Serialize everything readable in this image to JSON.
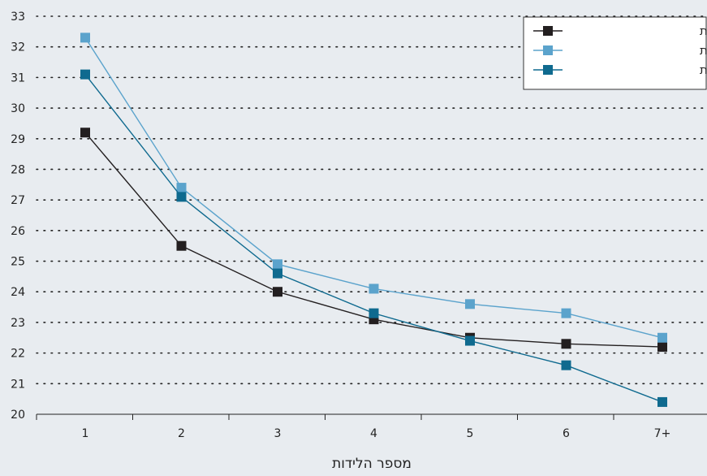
{
  "chart_data": {
    "type": "line",
    "categories": [
      "1",
      "2",
      "3",
      "4",
      "5",
      "6",
      "7+"
    ],
    "xlabel": "מספר הלידות",
    "ylim": [
      20,
      33
    ],
    "yticks": [
      "20",
      "21",
      "22",
      "23",
      "24",
      "25",
      "26",
      "27",
      "28",
      "29",
      "30",
      "31",
      "32",
      "33"
    ],
    "grid": "horizontal dotted",
    "legend_position": "top-right",
    "series": [
      {
        "name": "יהודיות לא חרדיות",
        "color": "#231f20",
        "values": [
          29.2,
          25.5,
          24.0,
          23.1,
          22.5,
          22.3,
          22.2
        ]
      },
      {
        "name": "חרדיות",
        "color": "#5ba3cc",
        "values": [
          32.3,
          27.4,
          24.9,
          24.1,
          23.6,
          23.3,
          22.5
        ]
      },
      {
        "name": "ערביות",
        "color": "#0f6a8f",
        "values": [
          31.1,
          27.1,
          24.6,
          23.3,
          22.4,
          21.6,
          20.4
        ]
      }
    ]
  }
}
